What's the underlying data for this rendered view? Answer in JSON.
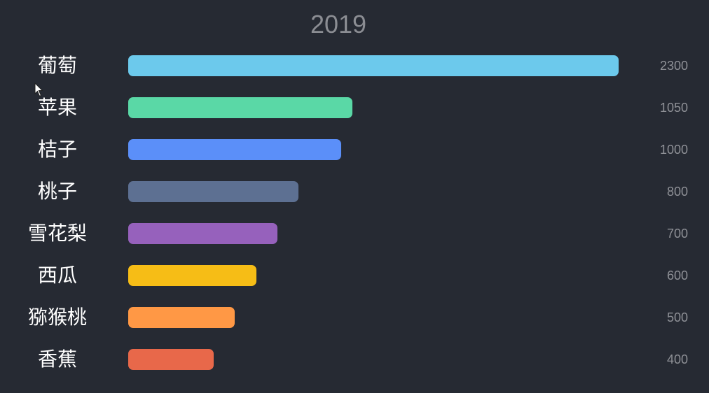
{
  "chart_data": {
    "type": "bar",
    "orientation": "horizontal",
    "title": "2019",
    "categories": [
      "葡萄",
      "苹果",
      "桔子",
      "桃子",
      "雪花梨",
      "西瓜",
      "猕猴桃",
      "香蕉"
    ],
    "values": [
      2300,
      1050,
      1000,
      800,
      700,
      600,
      500,
      400
    ],
    "value_labels": [
      "2300",
      "1050",
      "1000",
      "800",
      "700",
      "600",
      "500",
      "400"
    ],
    "colors": [
      "#6cc9ec",
      "#5ad8a6",
      "#5b8ff9",
      "#5d7092",
      "#9661bc",
      "#f6bd16",
      "#ff9845",
      "#e8684a"
    ],
    "xlim": [
      0,
      2300
    ],
    "grid": false,
    "legend": "none"
  }
}
